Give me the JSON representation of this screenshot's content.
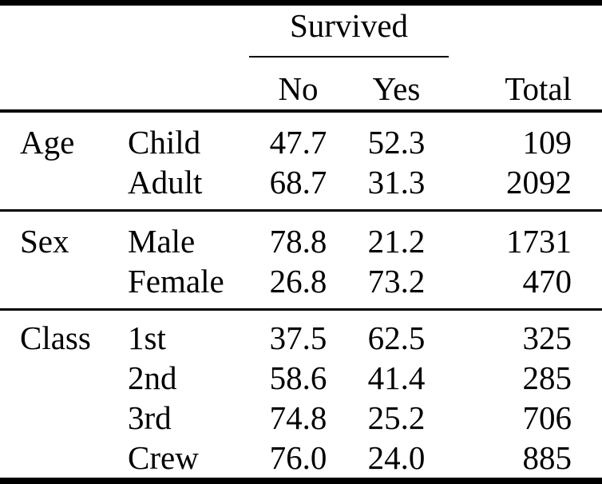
{
  "table": {
    "col_group_header": "Survived",
    "columns": {
      "no": "No",
      "yes": "Yes",
      "total": "Total"
    },
    "sections": [
      {
        "group": "Age",
        "rows": [
          {
            "category": "Child",
            "no": "47.7",
            "yes": "52.3",
            "total": "109"
          },
          {
            "category": "Adult",
            "no": "68.7",
            "yes": "31.3",
            "total": "2092"
          }
        ]
      },
      {
        "group": "Sex",
        "rows": [
          {
            "category": "Male",
            "no": "78.8",
            "yes": "21.2",
            "total": "1731"
          },
          {
            "category": "Female",
            "no": "26.8",
            "yes": "73.2",
            "total": "470"
          }
        ]
      },
      {
        "group": "Class",
        "rows": [
          {
            "category": "1st",
            "no": "37.5",
            "yes": "62.5",
            "total": "325"
          },
          {
            "category": "2nd",
            "no": "58.6",
            "yes": "41.4",
            "total": "285"
          },
          {
            "category": "3rd",
            "no": "74.8",
            "yes": "25.2",
            "total": "706"
          },
          {
            "category": "Crew",
            "no": "76.0",
            "yes": "24.0",
            "total": "885"
          }
        ]
      }
    ]
  },
  "colors": {
    "background": "#ffffff",
    "text": "#000000",
    "rule": "#000000"
  },
  "chart_data": {
    "type": "table",
    "title": "Survived",
    "columns": [
      "No",
      "Yes",
      "Total"
    ],
    "row_groups": [
      "Age",
      "Sex",
      "Class"
    ],
    "rows": [
      {
        "group": "Age",
        "category": "Child",
        "no_pct": 47.7,
        "yes_pct": 52.3,
        "total": 109
      },
      {
        "group": "Age",
        "category": "Adult",
        "no_pct": 68.7,
        "yes_pct": 31.3,
        "total": 2092
      },
      {
        "group": "Sex",
        "category": "Male",
        "no_pct": 78.8,
        "yes_pct": 21.2,
        "total": 1731
      },
      {
        "group": "Sex",
        "category": "Female",
        "no_pct": 26.8,
        "yes_pct": 73.2,
        "total": 470
      },
      {
        "group": "Class",
        "category": "1st",
        "no_pct": 37.5,
        "yes_pct": 62.5,
        "total": 325
      },
      {
        "group": "Class",
        "category": "2nd",
        "no_pct": 58.6,
        "yes_pct": 41.4,
        "total": 285
      },
      {
        "group": "Class",
        "category": "3rd",
        "no_pct": 74.8,
        "yes_pct": 25.2,
        "total": 706
      },
      {
        "group": "Class",
        "category": "Crew",
        "no_pct": 76.0,
        "yes_pct": 24.0,
        "total": 885
      }
    ]
  }
}
